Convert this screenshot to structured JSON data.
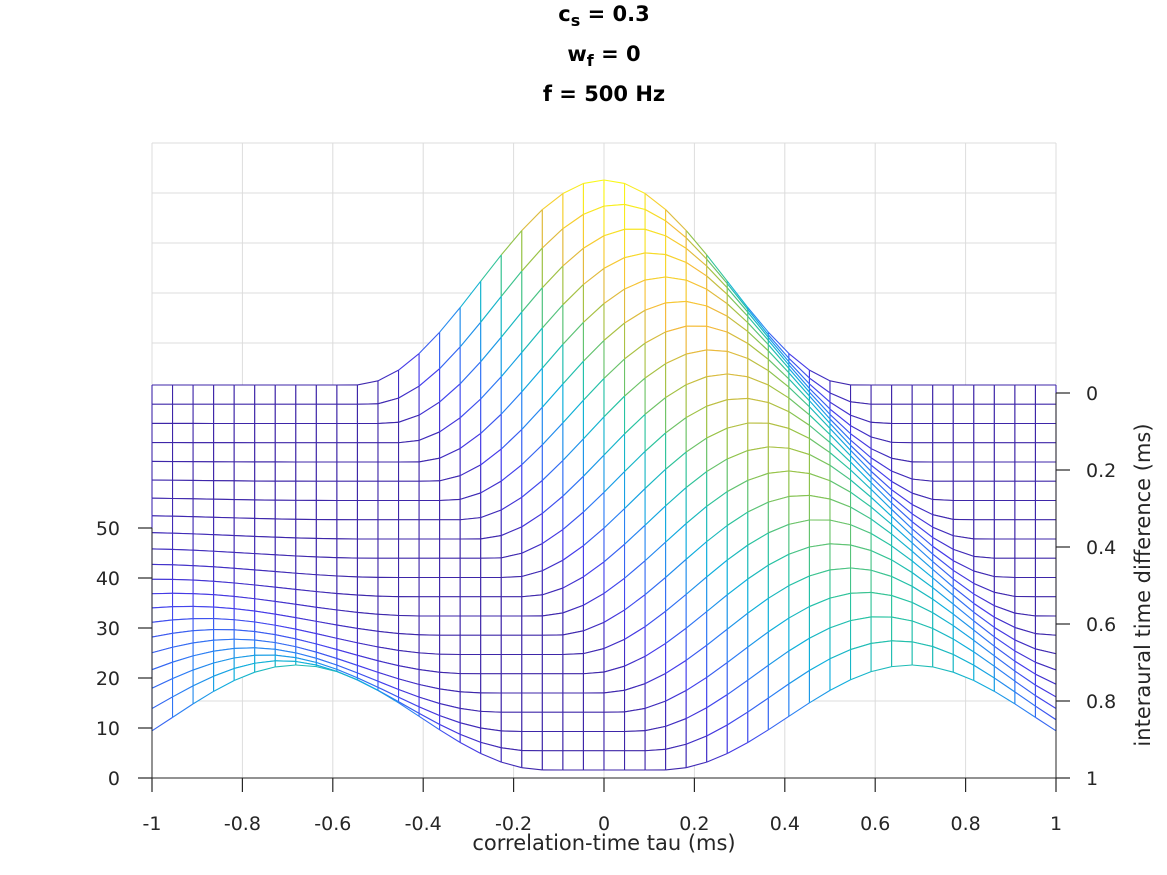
{
  "chart_data": {
    "type": "mesh",
    "title_lines": [
      {
        "base": "c",
        "sub": "s",
        "rest": " = 0.3"
      },
      {
        "base": "w",
        "sub": "f",
        "rest": " = 0"
      },
      {
        "base": "f = 500 Hz",
        "sub": "",
        "rest": ""
      }
    ],
    "xlabel": "correlation-time tau (ms)",
    "ylabel": "interaural time difference (ms)",
    "zlabel": "",
    "xlim": [
      -1,
      1
    ],
    "ylim": [
      0,
      1
    ],
    "zlim": [
      0,
      50
    ],
    "x_ticks": [
      "-1",
      "-0.8",
      "-0.6",
      "-0.4",
      "-0.2",
      "0",
      "0.2",
      "0.4",
      "0.6",
      "0.8",
      "1"
    ],
    "y_ticks": [
      "0",
      "0.2",
      "0.4",
      "0.6",
      "0.8",
      "1"
    ],
    "z_ticks": [
      "0",
      "10",
      "20",
      "30",
      "40",
      "50"
    ],
    "grid": true,
    "colormap": "parula",
    "mesh_points_tau": 45,
    "mesh_points_itd": 21,
    "surface_estimate": {
      "baseline": 1.6,
      "ridges": [
        {
          "tau_at_itd0": 0,
          "tau_at_itd1": 0.68,
          "peak_at_itd0": 41,
          "peak_at_itd1": 21
        },
        {
          "tau_at_itd0": -1.36,
          "tau_at_itd1": -0.68,
          "peak_at_itd0": 0,
          "peak_at_itd1": 21
        }
      ],
      "ridge_halfwidth_ms": 0.55
    }
  }
}
